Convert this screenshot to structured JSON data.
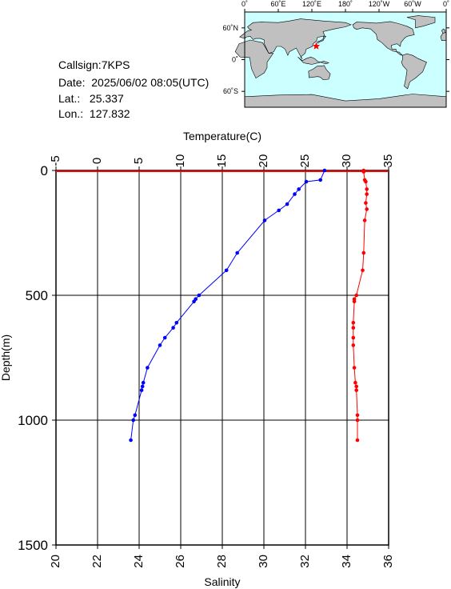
{
  "info": {
    "callsign": "Callsign:7KPS",
    "date": "Date:  2025/06/02 08:05(UTC)",
    "lat": "Lat.:   25.337",
    "lon": "Lon.:  127.832"
  },
  "map": {
    "top_labels": [
      "0˚",
      "60˚E",
      "120˚E",
      "180˚",
      "120˚W",
      "60˚W",
      "0˚"
    ],
    "right_labels": [
      "60˚N",
      "0˚",
      "60˚S"
    ],
    "ocean_color": "#ccffff",
    "land_color": "#c0c0c0",
    "marker": {
      "lat": 25.337,
      "lon": 127.832,
      "color": "#ff0000",
      "symbol": "star"
    }
  },
  "chart_data": {
    "type": "line",
    "top_axis": {
      "label": "Temperature(C)",
      "range": [
        -5,
        35
      ],
      "ticks": [
        "-5",
        "0",
        "5",
        "10",
        "15",
        "20",
        "25",
        "30",
        "35"
      ]
    },
    "bottom_axis": {
      "label": "Salinity",
      "range": [
        20,
        36
      ],
      "ticks": [
        "20",
        "22",
        "24",
        "26",
        "28",
        "30",
        "32",
        "34",
        "36"
      ]
    },
    "y_axis": {
      "label": "Depth(m)",
      "range": [
        0,
        1500
      ],
      "inverted": true,
      "ticks": [
        "0",
        "500",
        "1000",
        "1500"
      ]
    },
    "grid": true,
    "surface_line_color": "#ff0000",
    "series": [
      {
        "axis": "top",
        "color": "#0000ff",
        "points": [
          [
            27.3,
            0
          ],
          [
            26.8,
            38
          ],
          [
            25.1,
            45
          ],
          [
            24.2,
            75
          ],
          [
            23.7,
            95
          ],
          [
            22.8,
            135
          ],
          [
            21.8,
            160
          ],
          [
            20.1,
            200
          ],
          [
            16.8,
            330
          ],
          [
            15.5,
            400
          ],
          [
            12.2,
            500
          ],
          [
            11.8,
            515
          ],
          [
            11.6,
            525
          ],
          [
            9.5,
            610
          ],
          [
            9.1,
            630
          ],
          [
            8.1,
            670
          ],
          [
            7.5,
            700
          ],
          [
            6.0,
            790
          ],
          [
            5.5,
            850
          ],
          [
            5.4,
            865
          ],
          [
            5.3,
            880
          ],
          [
            4.5,
            980
          ],
          [
            4.3,
            1000
          ],
          [
            4.0,
            1080
          ]
        ]
      },
      {
        "axis": "bottom",
        "color": "#ff0000",
        "points": [
          [
            34.8,
            0
          ],
          [
            34.8,
            5
          ],
          [
            34.85,
            38
          ],
          [
            34.9,
            45
          ],
          [
            34.95,
            75
          ],
          [
            34.95,
            95
          ],
          [
            34.9,
            130
          ],
          [
            34.95,
            155
          ],
          [
            34.85,
            200
          ],
          [
            34.8,
            330
          ],
          [
            34.75,
            400
          ],
          [
            34.45,
            500
          ],
          [
            34.35,
            515
          ],
          [
            34.35,
            525
          ],
          [
            34.3,
            610
          ],
          [
            34.3,
            630
          ],
          [
            34.3,
            670
          ],
          [
            34.3,
            700
          ],
          [
            34.35,
            790
          ],
          [
            34.4,
            850
          ],
          [
            34.45,
            865
          ],
          [
            34.45,
            880
          ],
          [
            34.5,
            980
          ],
          [
            34.5,
            1000
          ],
          [
            34.5,
            1080
          ]
        ]
      }
    ]
  }
}
